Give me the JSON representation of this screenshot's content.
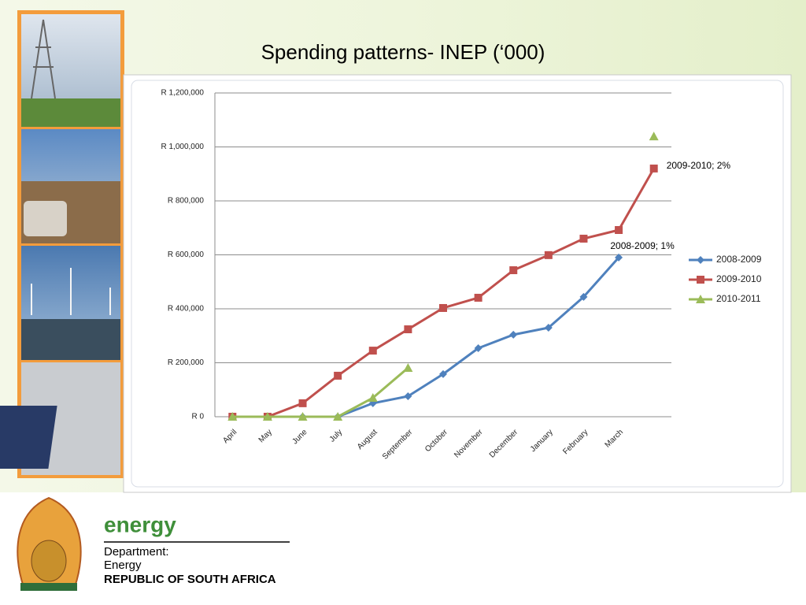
{
  "chart_data": {
    "type": "line",
    "title": "Spending patterns- INEP (‘000)",
    "categories": [
      "April",
      "May",
      "June",
      "July",
      "August",
      "September",
      "October",
      "November",
      "December",
      "January",
      "February",
      "March",
      null
    ],
    "series": [
      {
        "name": "2008-2009",
        "color": "#4f81bd",
        "marker": "diamond",
        "values": [
          0,
          0,
          0,
          0,
          50000,
          76000,
          158000,
          254000,
          304000,
          330000,
          444000,
          590000,
          null
        ]
      },
      {
        "name": "2009-2010",
        "color": "#c0504d",
        "marker": "square",
        "values": [
          0,
          0,
          50000,
          152000,
          245000,
          324000,
          403000,
          441000,
          543000,
          599000,
          660000,
          692000,
          920000
        ]
      },
      {
        "name": "2010-2011",
        "color": "#9bbb59",
        "marker": "triangle",
        "values": [
          0,
          0,
          0,
          0,
          70000,
          181000,
          null,
          null,
          null,
          null,
          null,
          null,
          1039000
        ]
      }
    ],
    "ylim": [
      0,
      1200000
    ],
    "yticks": [
      {
        "value": 0,
        "label": "R 0"
      },
      {
        "value": 200000,
        "label": "R 200,000"
      },
      {
        "value": 400000,
        "label": "R 400,000"
      },
      {
        "value": 600000,
        "label": "R 600,000"
      },
      {
        "value": 800000,
        "label": "R 800,000"
      },
      {
        "value": 1000000,
        "label": "R 1,000,000"
      },
      {
        "value": 1200000,
        "label": "R 1,200,000"
      }
    ],
    "grid": true,
    "legend": "right",
    "annotations": [
      "2009-2010; 2%",
      "2008-2009; 1%"
    ]
  },
  "footer": {
    "brand": "energy",
    "line1": "Department:",
    "line2": "Energy",
    "line3": "REPUBLIC OF SOUTH AFRICA"
  }
}
